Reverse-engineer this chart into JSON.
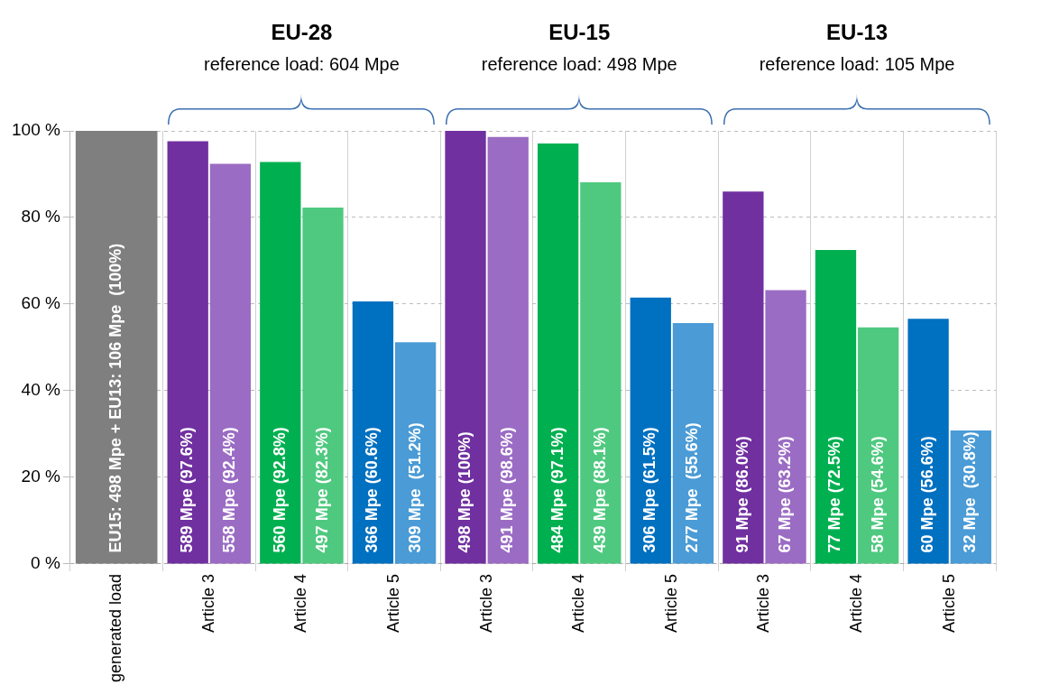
{
  "chart_data": {
    "type": "bar",
    "categories": [
      "generated load",
      "Article 3",
      "Article 4",
      "Article 5",
      "Article 3",
      "Article 4",
      "Article 5",
      "Article 3",
      "Article 4",
      "Article 5"
    ],
    "series": [
      {
        "colors": [
          "#7f7f7f",
          "#7030a0",
          "#00b050",
          "#0070c0",
          "#7030a0",
          "#00b050",
          "#0070c0",
          "#7030a0",
          "#00b050",
          "#0070c0"
        ],
        "values": [
          100,
          97.6,
          92.8,
          60.6,
          100,
          97.1,
          61.5,
          86.0,
          72.5,
          56.6
        ],
        "value_labels": [
          "EU15: 498 Mpe + EU13: 106 Mpe  (100%)",
          "589 Mpe (97.6%)",
          "560 Mpe (92.8%)",
          "366 Mpe (60.6%)",
          "498 Mpe (100%)",
          "484 Mpe (97.1%)",
          "306 Mpe (61.5%)",
          "91 Mpe (86.0%)",
          "77 Mpe (72.5%)",
          "60 Mpe (56.6%)"
        ]
      },
      {
        "colors": [
          null,
          "#9b6cc4",
          "#4fc97f",
          "#4a9bd6",
          "#9b6cc4",
          "#4fc97f",
          "#4a9bd6",
          "#9b6cc4",
          "#4fc97f",
          "#4a9bd6"
        ],
        "values": [
          null,
          92.4,
          82.3,
          51.2,
          98.6,
          88.1,
          55.6,
          63.2,
          54.6,
          30.8
        ],
        "value_labels": [
          null,
          "558 Mpe (92.4%)",
          "497 Mpe (82.3%)",
          "309 Mpe  (51.2%)",
          "491 Mpe (98.6%)",
          "439 Mpe (88.1%)",
          "277 Mpe  (55.6%)",
          "67 Mpe (63.2%)",
          "58 Mpe (54.6%)",
          "32 Mpe  (30.8%)"
        ]
      }
    ],
    "ylim": [
      0,
      100
    ],
    "yticks": [
      {
        "value": 0,
        "label": "0 %"
      },
      {
        "value": 20,
        "label": "20 %"
      },
      {
        "value": 40,
        "label": "40 %"
      },
      {
        "value": 60,
        "label": "60 %"
      },
      {
        "value": 80,
        "label": "80 %"
      },
      {
        "value": 100,
        "label": "100 %"
      }
    ],
    "grid": true,
    "annotations": [
      "EU-28",
      "reference load: 604 Mpe",
      "EU-15",
      "reference load: 498 Mpe",
      "EU-13",
      "reference load: 105 Mpe"
    ]
  }
}
